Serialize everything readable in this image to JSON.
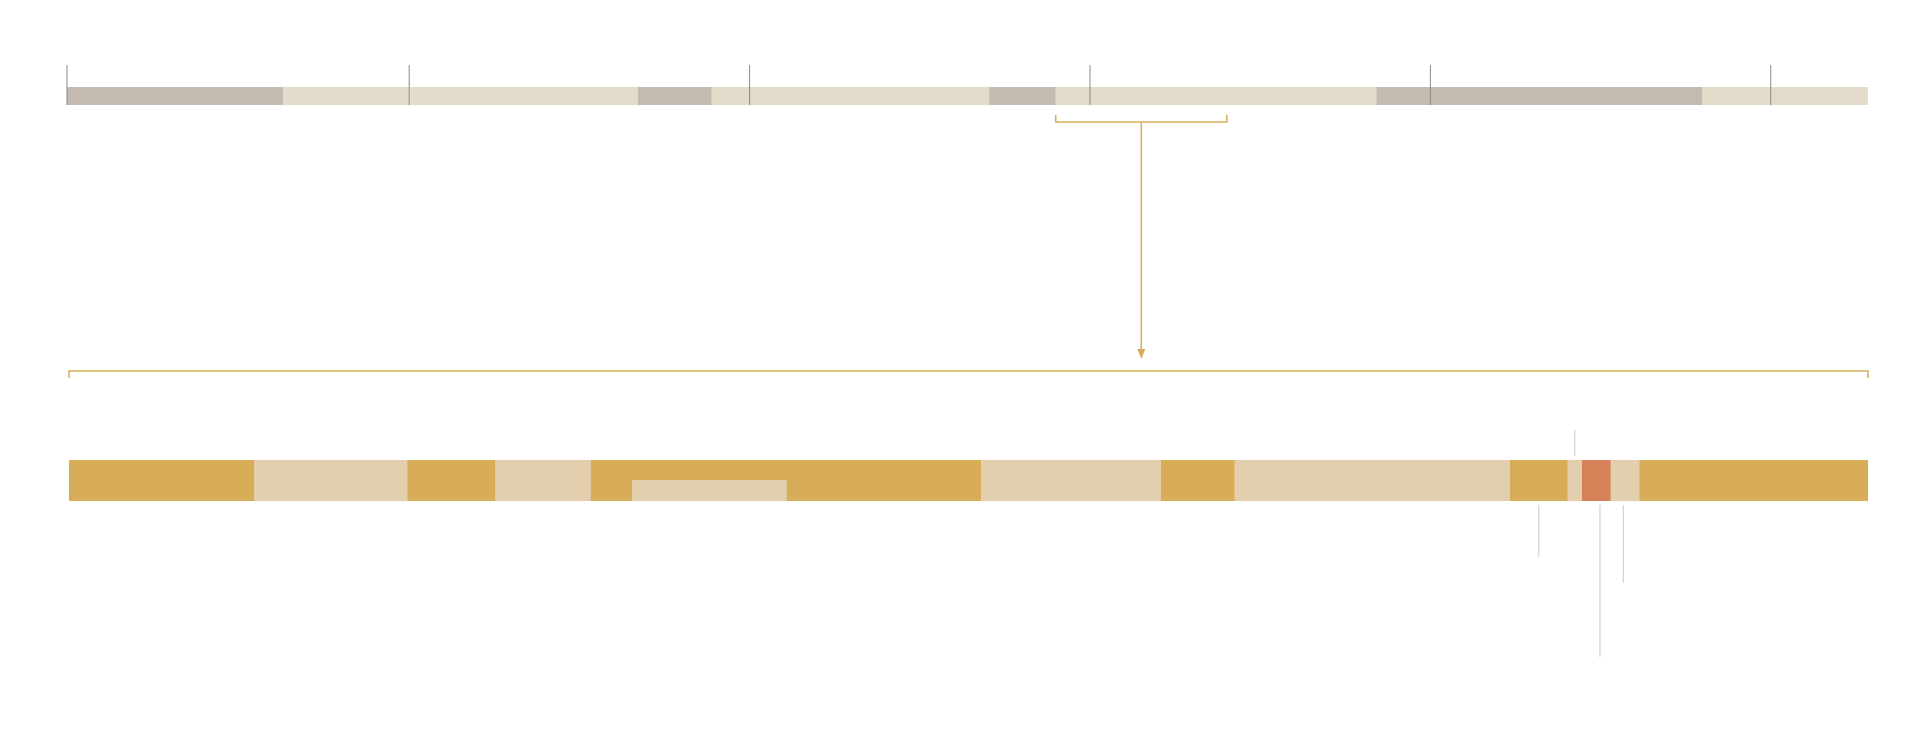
{
  "colors": {
    "background": "#ffffff",
    "overview_light": "#e4dccb",
    "overview_dark": "#c4bbb0",
    "overview_tick": "#8f8a84",
    "zoom_bracket": "#d8ad57",
    "detail_gold": "#d8ad57",
    "detail_light": "#e3cead",
    "detail_highlight": "#d68158",
    "detail_tick": "#c9c9c9"
  },
  "overview": {
    "range": [
      0,
      1
    ],
    "segments": [
      {
        "start": 0.0,
        "end": 0.12,
        "kind": "dark"
      },
      {
        "start": 0.12,
        "end": 0.317,
        "kind": "light"
      },
      {
        "start": 0.317,
        "end": 0.358,
        "kind": "dark"
      },
      {
        "start": 0.358,
        "end": 0.512,
        "kind": "light"
      },
      {
        "start": 0.512,
        "end": 0.549,
        "kind": "dark"
      },
      {
        "start": 0.549,
        "end": 0.727,
        "kind": "light"
      },
      {
        "start": 0.727,
        "end": 0.908,
        "kind": "dark"
      },
      {
        "start": 0.908,
        "end": 1.0,
        "kind": "light"
      }
    ],
    "ticks": [
      0.0,
      0.19,
      0.379,
      0.568,
      0.757,
      0.946
    ]
  },
  "zoom_window": {
    "start": 0.549,
    "end": 0.644
  },
  "detail": {
    "range": [
      0,
      1
    ],
    "segments": [
      {
        "start": 0.0,
        "end": 0.103,
        "kind": "gold"
      },
      {
        "start": 0.103,
        "end": 0.188,
        "kind": "light"
      },
      {
        "start": 0.188,
        "end": 0.237,
        "kind": "gold"
      },
      {
        "start": 0.237,
        "end": 0.29,
        "kind": "light"
      },
      {
        "start": 0.29,
        "end": 0.507,
        "kind": "gold"
      },
      {
        "start": 0.507,
        "end": 0.607,
        "kind": "light"
      },
      {
        "start": 0.607,
        "end": 0.648,
        "kind": "gold"
      },
      {
        "start": 0.648,
        "end": 0.801,
        "kind": "light"
      },
      {
        "start": 0.801,
        "end": 0.833,
        "kind": "gold"
      },
      {
        "start": 0.833,
        "end": 0.841,
        "kind": "light"
      },
      {
        "start": 0.841,
        "end": 0.857,
        "kind": "highlight"
      },
      {
        "start": 0.857,
        "end": 0.873,
        "kind": "light"
      },
      {
        "start": 0.873,
        "end": 1.0,
        "kind": "gold"
      }
    ],
    "inner_segment": {
      "start": 0.313,
      "end": 0.399,
      "kind": "light"
    },
    "markers": [
      {
        "pos": 0.837,
        "side": "above",
        "length": "short"
      },
      {
        "pos": 0.817,
        "side": "below",
        "length": "medium"
      },
      {
        "pos": 0.851,
        "side": "below",
        "length": "long"
      },
      {
        "pos": 0.864,
        "side": "below",
        "length": "medium-long"
      }
    ]
  }
}
